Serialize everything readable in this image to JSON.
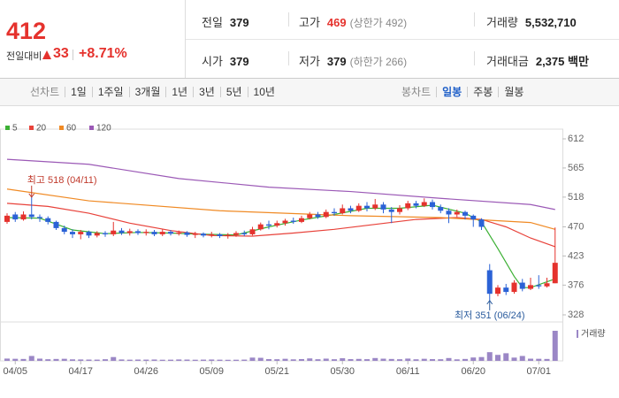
{
  "header": {
    "price": "412",
    "change_label": "전일대비",
    "change": "33",
    "change_pct": "+8.71%",
    "stats": [
      {
        "label": "전일",
        "value": "379"
      },
      {
        "label": "고가",
        "value": "469",
        "note": "(상한가 492)"
      },
      {
        "label": "거래량",
        "value": "5,532,710"
      },
      {
        "label": "시가",
        "value": "379"
      },
      {
        "label": "저가",
        "value": "379",
        "note": "(하한가 266)"
      },
      {
        "label": "거래대금",
        "value": "2,375 백만"
      }
    ]
  },
  "toolbar": {
    "line_label": "선차트",
    "line_periods": [
      "1일",
      "1주일",
      "3개월",
      "1년",
      "3년",
      "5년",
      "10년"
    ],
    "candle_label": "봉차트",
    "candle_periods": [
      "일봉",
      "주봉",
      "월봉"
    ],
    "active": "일봉"
  },
  "chart_data": {
    "type": "candlestick",
    "categories": [
      null,
      "04/05",
      null,
      null,
      null,
      null,
      null,
      null,
      null,
      "04/17",
      null,
      null,
      null,
      null,
      null,
      null,
      null,
      "04/26",
      null,
      null,
      null,
      null,
      null,
      null,
      null,
      "05/09",
      null,
      null,
      null,
      null,
      null,
      null,
      null,
      "05/21",
      null,
      null,
      null,
      null,
      null,
      null,
      null,
      "05/30",
      null,
      null,
      null,
      null,
      null,
      null,
      null,
      "06/11",
      null,
      null,
      null,
      null,
      null,
      null,
      null,
      "06/20",
      null,
      null,
      null,
      null,
      null,
      null,
      null,
      "07/01",
      null,
      null
    ],
    "open": [
      478,
      490,
      482,
      490,
      486,
      484,
      478,
      468,
      462,
      458,
      462,
      456,
      460,
      458,
      464,
      460,
      463,
      460,
      462,
      458,
      462,
      459,
      461,
      457,
      459,
      456,
      458,
      455,
      457,
      460,
      458,
      466,
      474,
      472,
      476,
      480,
      478,
      484,
      490,
      486,
      494,
      492,
      500,
      496,
      504,
      500,
      506,
      498,
      494,
      500,
      508,
      504,
      510,
      502,
      496,
      490,
      494,
      488,
      482,
      400,
      362,
      372,
      365,
      380,
      370,
      376,
      374,
      379
    ],
    "high": [
      492,
      494,
      495,
      518,
      490,
      487,
      480,
      472,
      466,
      465,
      464,
      463,
      463,
      478,
      468,
      467,
      466,
      466,
      465,
      466,
      465,
      464,
      463,
      462,
      461,
      462,
      460,
      460,
      463,
      464,
      470,
      477,
      480,
      480,
      483,
      485,
      488,
      494,
      494,
      498,
      500,
      506,
      504,
      508,
      510,
      515,
      510,
      502,
      505,
      512,
      512,
      516,
      514,
      506,
      500,
      498,
      496,
      490,
      484,
      410,
      376,
      378,
      384,
      386,
      388,
      392,
      388,
      469
    ],
    "low": [
      475,
      478,
      480,
      482,
      478,
      474,
      465,
      458,
      452,
      450,
      452,
      453,
      454,
      455,
      457,
      456,
      457,
      456,
      455,
      455,
      456,
      456,
      454,
      452,
      453,
      453,
      452,
      451,
      454,
      455,
      456,
      464,
      466,
      469,
      472,
      475,
      476,
      482,
      483,
      484,
      488,
      490,
      492,
      494,
      495,
      497,
      492,
      476,
      490,
      497,
      500,
      502,
      498,
      492,
      476,
      486,
      482,
      470,
      465,
      351,
      358,
      360,
      362,
      366,
      368,
      370,
      372,
      379
    ],
    "close": [
      488,
      482,
      490,
      486,
      484,
      478,
      468,
      462,
      458,
      462,
      456,
      460,
      458,
      464,
      460,
      463,
      460,
      462,
      458,
      462,
      459,
      461,
      457,
      459,
      456,
      458,
      455,
      457,
      460,
      458,
      466,
      474,
      472,
      476,
      480,
      478,
      484,
      490,
      486,
      494,
      492,
      500,
      496,
      504,
      500,
      506,
      498,
      494,
      500,
      508,
      504,
      510,
      502,
      496,
      490,
      494,
      488,
      482,
      470,
      362,
      372,
      365,
      380,
      370,
      376,
      374,
      379,
      412
    ],
    "up_color": "#e5322d",
    "down_color": "#2b62d6",
    "ylim": [
      328,
      612
    ],
    "yticks": [
      328,
      376,
      423,
      470,
      518,
      565,
      612
    ],
    "moving_averages": [
      {
        "name": "5",
        "color": "#3cb034",
        "x": [
          0,
          4,
          8,
          12,
          16,
          20,
          24,
          28,
          32,
          36,
          40,
          44,
          48,
          52,
          56,
          58,
          60,
          62,
          63,
          64,
          67
        ],
        "values": [
          485,
          484,
          465,
          459,
          461,
          460,
          458,
          457,
          470,
          481,
          490,
          500,
          500,
          505,
          492,
          478,
          435,
          390,
          372,
          372,
          386
        ]
      },
      {
        "name": "20",
        "color": "#e8423a",
        "x": [
          0,
          5,
          10,
          15,
          20,
          25,
          30,
          35,
          40,
          45,
          50,
          55,
          58,
          61,
          64,
          67
        ],
        "values": [
          508,
          503,
          492,
          476,
          464,
          456,
          455,
          460,
          466,
          474,
          482,
          485,
          482,
          470,
          452,
          438
        ]
      },
      {
        "name": "60",
        "color": "#f08a24",
        "x": [
          0,
          10,
          26,
          42,
          53,
          64,
          67
        ],
        "values": [
          531,
          512,
          496,
          488,
          485,
          477,
          466
        ]
      },
      {
        "name": "120",
        "color": "#9b59b6",
        "x": [
          0,
          10,
          21,
          32,
          42,
          53,
          64,
          67
        ],
        "values": [
          579,
          571,
          548,
          534,
          527,
          516,
          506,
          498
        ]
      }
    ],
    "volume": {
      "name": "거래량",
      "color": "#9b87c6",
      "values": [
        420000,
        380000,
        350000,
        900000,
        410000,
        300000,
        350000,
        380000,
        280000,
        260000,
        240000,
        230000,
        300000,
        700000,
        260000,
        220000,
        240000,
        230000,
        250000,
        210000,
        220000,
        260000,
        240000,
        210000,
        230000,
        250000,
        220000,
        200000,
        210000,
        230000,
        600000,
        560000,
        320000,
        300000,
        380000,
        280000,
        330000,
        450000,
        300000,
        410000,
        300000,
        480000,
        320000,
        360000,
        310000,
        520000,
        400000,
        350000,
        300000,
        420000,
        290000,
        380000,
        320000,
        300000,
        520000,
        280000,
        350000,
        620000,
        700000,
        1600000,
        1100000,
        1400000,
        600000,
        900000,
        400000,
        380000,
        350000,
        5532710
      ]
    },
    "annotations": [
      {
        "text": "최고 518 (04/11)",
        "index": 3,
        "value": 518,
        "color": "#c0392b"
      },
      {
        "text": "최저 351 (06/24)",
        "index": 59,
        "value": 351,
        "color": "#2a5b9d"
      }
    ]
  }
}
